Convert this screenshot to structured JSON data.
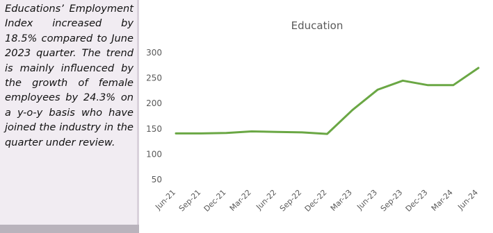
{
  "sidebar": {
    "text": "Educations’ Employment Index increased by 18.5% compared to June 2023 quarter. The trend is mainly influenced by the growth of female employees by 24.3% on a y-o-y basis who have joined the industry in the quarter under review."
  },
  "chart_data": {
    "type": "line",
    "title": "Education",
    "xlabel": "",
    "ylabel": "",
    "categories": [
      "Jun-21",
      "Sep-21",
      "Dec-21",
      "Mar-22",
      "Jun-22",
      "Sep-22",
      "Dec-22",
      "Mar-23",
      "Jun-23",
      "Sep-23",
      "Dec-23",
      "Mar-24",
      "Jun-24"
    ],
    "series": [
      {
        "values": [
          141,
          141,
          142,
          145,
          144,
          143,
          140,
          187,
          227,
          245,
          236,
          236,
          270
        ]
      }
    ],
    "yticks": [
      50,
      100,
      150,
      200,
      250,
      300
    ],
    "ylim": [
      50,
      300
    ],
    "grid": false,
    "line_color": "#6aa744"
  }
}
